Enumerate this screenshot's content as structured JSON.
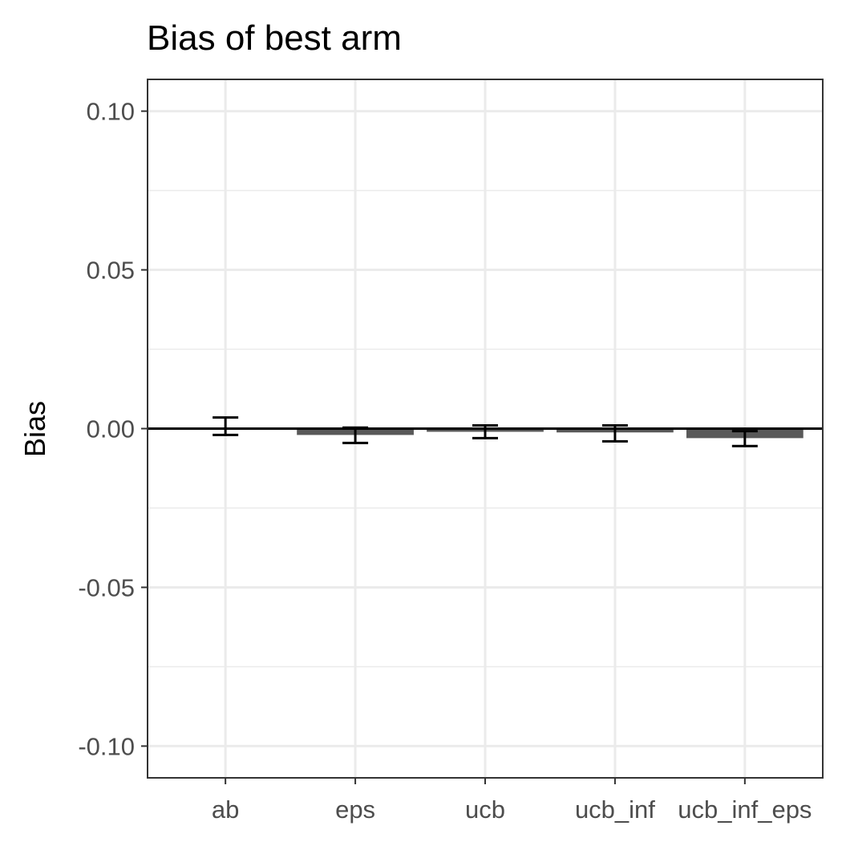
{
  "chart_data": {
    "type": "bar",
    "title": "Bias of best arm",
    "xlabel": "",
    "ylabel": "Bias",
    "categories": [
      "ab",
      "eps",
      "ucb",
      "ucb_inf",
      "ucb_inf_eps"
    ],
    "values": [
      0.0,
      -0.002,
      -0.001,
      -0.0012,
      -0.003
    ],
    "error_low": [
      -0.002,
      -0.0045,
      -0.003,
      -0.004,
      -0.0055
    ],
    "error_high": [
      0.0035,
      0.0003,
      0.001,
      0.001,
      -0.0008
    ],
    "ylim": [
      -0.11,
      0.11
    ],
    "yticks": [
      0.1,
      0.05,
      0.0,
      -0.05,
      -0.1
    ],
    "ytick_labels": [
      "0.10",
      "0.05",
      "0.00",
      "-0.05",
      "-0.10"
    ],
    "reference_line": 0,
    "grid": true,
    "colors": {
      "bar": "#595959",
      "error_bar": "#000000",
      "grid": "#ebebeb",
      "panel_border": "#333333",
      "tick_label": "#4d4d4d"
    }
  }
}
